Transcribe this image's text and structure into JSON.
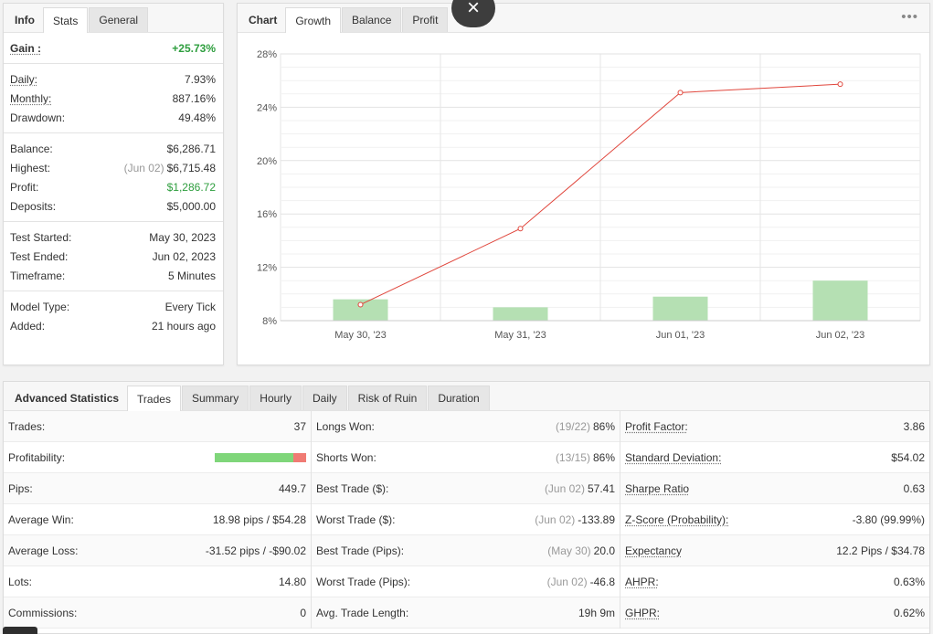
{
  "info": {
    "tabs": [
      "Info",
      "Stats",
      "General"
    ],
    "gain": {
      "label": "Gain :",
      "value": "+25.73%"
    },
    "group1": [
      {
        "label": "Daily:",
        "value": "7.93%"
      },
      {
        "label": "Monthly:",
        "value": "887.16%"
      },
      {
        "label": "Drawdown:",
        "value": "49.48%"
      }
    ],
    "group2": [
      {
        "label": "Balance:",
        "value": "$6,286.71"
      },
      {
        "label": "Highest:",
        "note": "(Jun 02)",
        "value": "$6,715.48"
      },
      {
        "label": "Profit:",
        "value": "$1,286.72"
      },
      {
        "label": "Deposits:",
        "value": "$5,000.00"
      }
    ],
    "group3": [
      {
        "label": "Test Started:",
        "value": "May 30, 2023"
      },
      {
        "label": "Test Ended:",
        "value": "Jun 02, 2023"
      },
      {
        "label": "Timeframe:",
        "value": "5 Minutes"
      }
    ],
    "group4": [
      {
        "label": "Model Type:",
        "value": "Every Tick"
      },
      {
        "label": "Added:",
        "value": "21 hours ago"
      }
    ]
  },
  "chart_panel": {
    "tabs": [
      "Chart",
      "Growth",
      "Balance",
      "Profit"
    ],
    "close_symbol": "×",
    "menu_symbol": "•••"
  },
  "chart_data": {
    "type": "line",
    "categories": [
      "May 30, '23",
      "May 31, '23",
      "Jun 01, '23",
      "Jun 02, '23"
    ],
    "series": [
      {
        "values": [
          9.2,
          14.9,
          25.1,
          25.73
        ],
        "color": "#e0463c"
      }
    ],
    "bars": {
      "values": [
        9.6,
        9.0,
        9.8,
        11.0
      ],
      "color": "#b5e0b3"
    },
    "yticks": [
      "28%",
      "24%",
      "20%",
      "16%",
      "12%",
      "8%"
    ],
    "ylim": [
      8,
      28
    ],
    "grid": true
  },
  "advanced": {
    "tabs": [
      "Advanced Statistics",
      "Trades",
      "Summary",
      "Hourly",
      "Daily",
      "Risk of Ruin",
      "Duration"
    ],
    "col1": [
      {
        "label": "Trades:",
        "value": "37"
      },
      {
        "label": "Profitability:",
        "bar_green_pct": 86
      },
      {
        "label": "Pips:",
        "value": "449.7"
      },
      {
        "label": "Average Win:",
        "value": "18.98 pips / $54.28"
      },
      {
        "label": "Average Loss:",
        "value": "-31.52 pips / -$90.02"
      },
      {
        "label": "Lots:",
        "value": "14.80"
      },
      {
        "label": "Commissions:",
        "value": "0"
      }
    ],
    "col2": [
      {
        "label": "Longs Won:",
        "note": "(19/22)",
        "value": "86%"
      },
      {
        "label": "Shorts Won:",
        "note": "(13/15)",
        "value": "86%"
      },
      {
        "label": "Best Trade ($):",
        "note": "(Jun 02)",
        "value": "57.41"
      },
      {
        "label": "Worst Trade ($):",
        "note": "(Jun 02)",
        "value": "-133.89"
      },
      {
        "label": "Best Trade (Pips):",
        "note": "(May 30)",
        "value": "20.0"
      },
      {
        "label": "Worst Trade (Pips):",
        "note": "(Jun 02)",
        "value": "-46.8"
      },
      {
        "label": "Avg. Trade Length:",
        "value": "19h 9m"
      }
    ],
    "col3": [
      {
        "label": "Profit Factor:",
        "value": "3.86"
      },
      {
        "label": "Standard Deviation:",
        "value": "$54.02"
      },
      {
        "label": "Sharpe Ratio",
        "value": "0.63"
      },
      {
        "label": "Z-Score (Probability):",
        "value": "-3.80 (99.99%)"
      },
      {
        "label": "Expectancy",
        "value": "12.2 Pips / $34.78"
      },
      {
        "label": "AHPR:",
        "value": "0.63%"
      },
      {
        "label": "GHPR:",
        "value": "0.62%"
      }
    ]
  }
}
